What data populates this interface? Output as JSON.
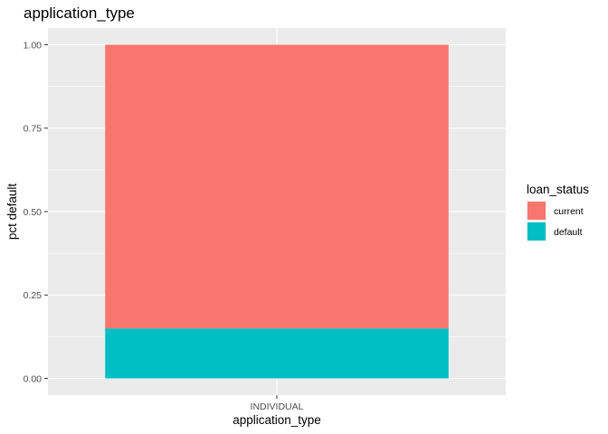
{
  "chart_data": {
    "type": "bar",
    "stacked": true,
    "title": "application_type",
    "xlabel": "application_type",
    "ylabel": "pct default",
    "categories": [
      "INDIVIDUAL"
    ],
    "series": [
      {
        "name": "current",
        "values": [
          0.85
        ],
        "color": "#F8766D"
      },
      {
        "name": "default",
        "values": [
          0.15
        ],
        "color": "#00BFC4"
      }
    ],
    "ylim": [
      0,
      1
    ],
    "yticks": [
      0.0,
      0.25,
      0.5,
      0.75,
      1.0
    ],
    "ytick_labels": [
      "0.00",
      "0.25",
      "0.50",
      "0.75",
      "1.00"
    ],
    "grid": true,
    "legend": {
      "title": "loan_status",
      "position": "right",
      "items": [
        "current",
        "default"
      ]
    },
    "colors": {
      "panel_background": "#EBEBEB",
      "grid": "#FFFFFF"
    }
  }
}
